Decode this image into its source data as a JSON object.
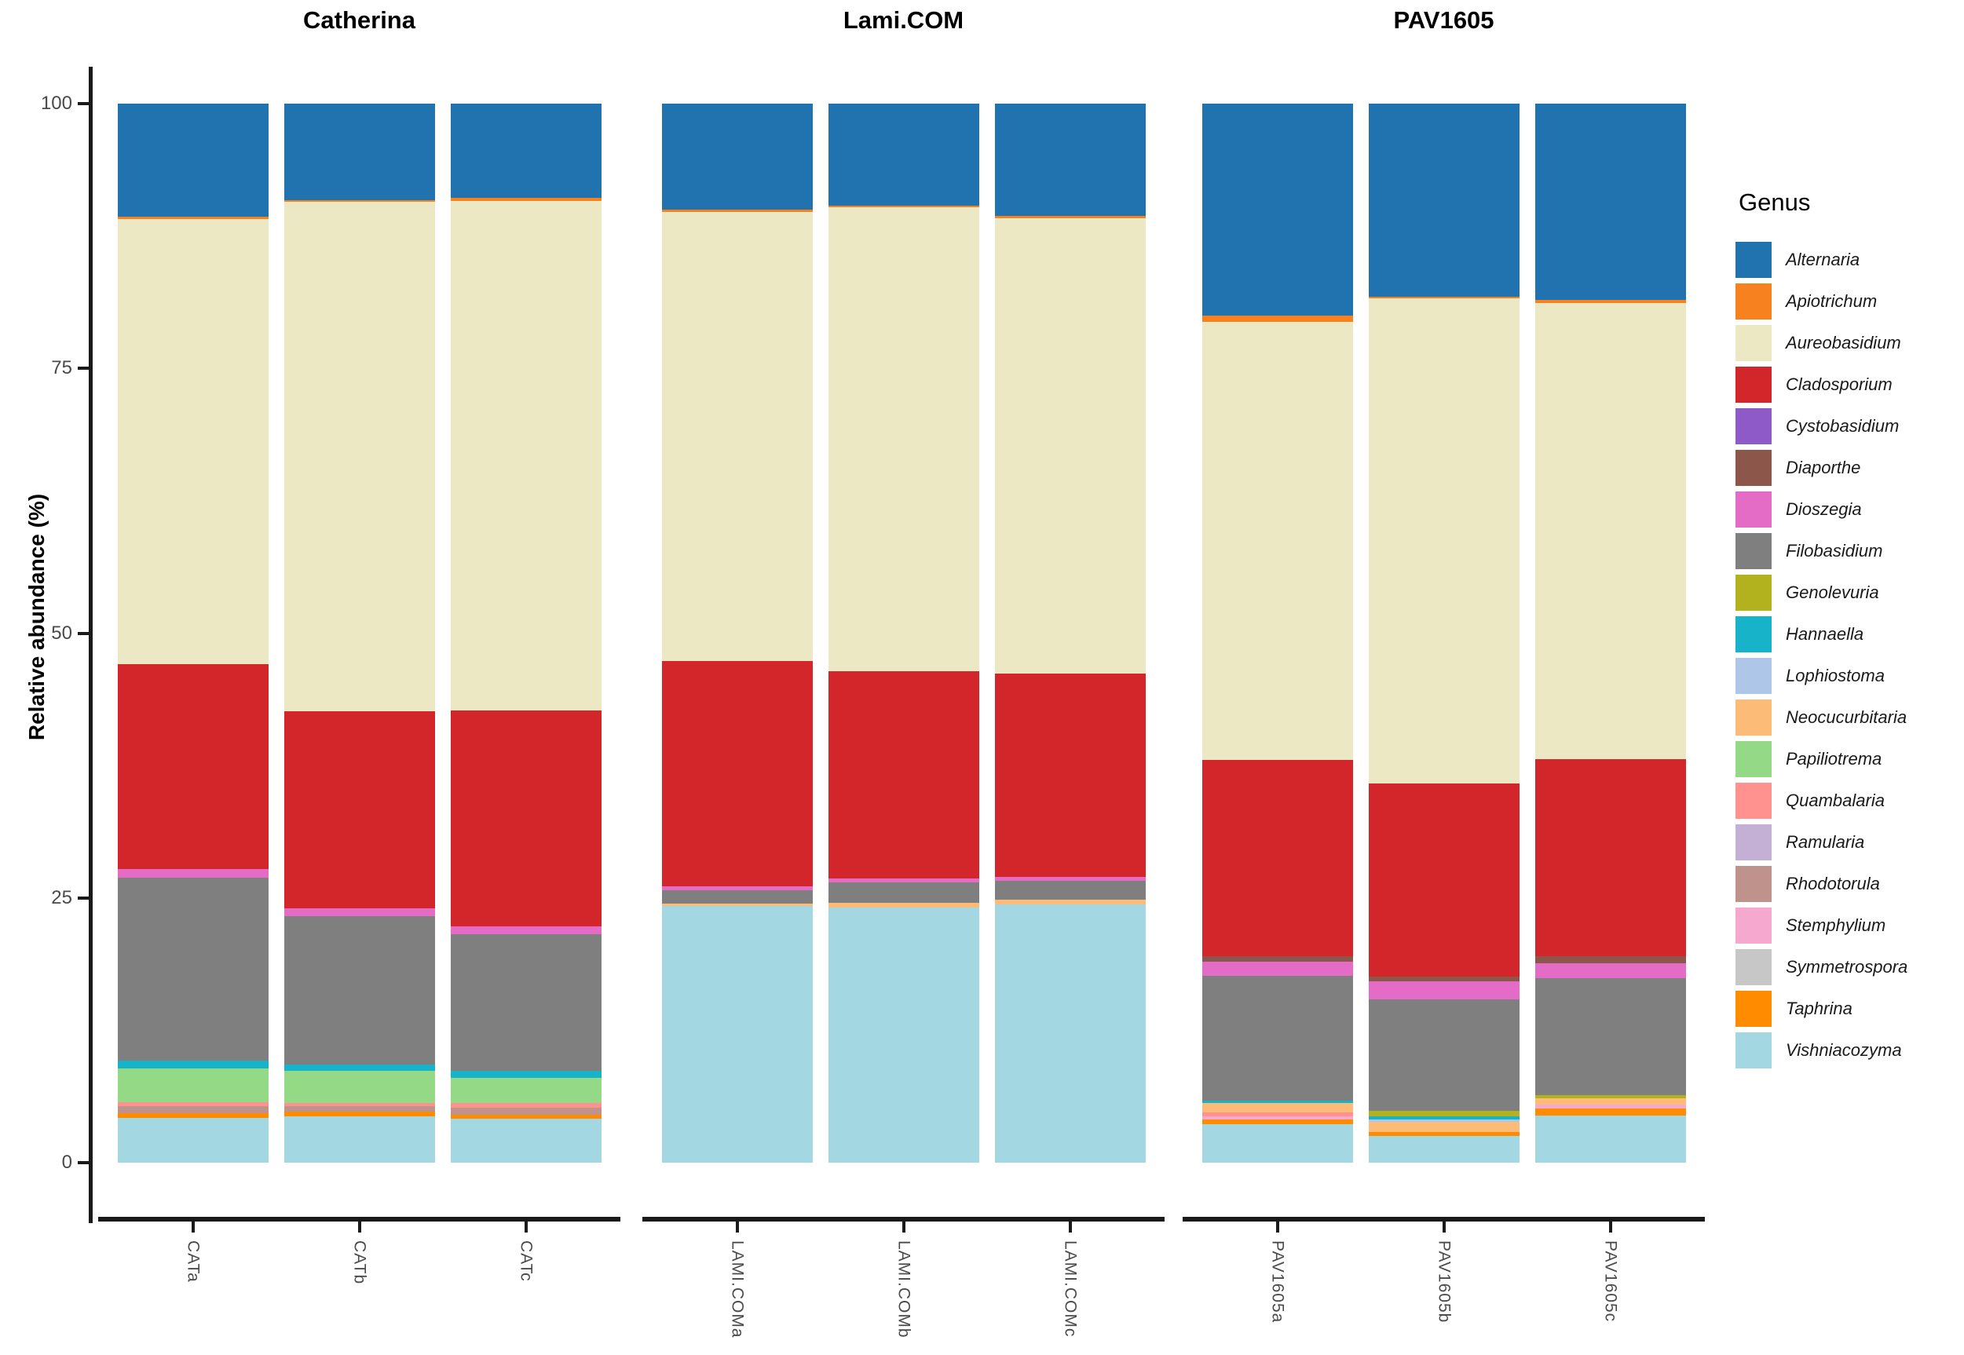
{
  "chart_data": {
    "type": "bar",
    "subtype": "stacked-percent-faceted",
    "title": "",
    "ylabel": "Relative abundance (%)",
    "xlabel": "",
    "ylim": [
      0,
      100
    ],
    "yticks": [
      0,
      25,
      50,
      75,
      100
    ],
    "grid": "off",
    "legend_position": "right",
    "legend_title": "Genus",
    "genera": [
      {
        "name": "Alternaria",
        "color": "#2173b0"
      },
      {
        "name": "Apiotrichum",
        "color": "#f8811f"
      },
      {
        "name": "Aureobasidium",
        "color": "#ece8c3"
      },
      {
        "name": "Cladosporium",
        "color": "#d3262a"
      },
      {
        "name": "Cystobasidium",
        "color": "#8d5ac8"
      },
      {
        "name": "Diaporthe",
        "color": "#8c564b"
      },
      {
        "name": "Dioszegia",
        "color": "#e46cc7"
      },
      {
        "name": "Filobasidium",
        "color": "#7f7f7f"
      },
      {
        "name": "Genolevuria",
        "color": "#b2b21e"
      },
      {
        "name": "Hannaella",
        "color": "#17b3c9"
      },
      {
        "name": "Lophiostoma",
        "color": "#aec7e8"
      },
      {
        "name": "Neocucurbitaria",
        "color": "#fdbb78"
      },
      {
        "name": "Papiliotrema",
        "color": "#94da86"
      },
      {
        "name": "Quambalaria",
        "color": "#ff918e"
      },
      {
        "name": "Ramularia",
        "color": "#c5b0d5"
      },
      {
        "name": "Rhodotorula",
        "color": "#c0928c"
      },
      {
        "name": "Stemphylium",
        "color": "#f7a8ce"
      },
      {
        "name": "Symmetrospora",
        "color": "#c7c7c7"
      },
      {
        "name": "Taphrina",
        "color": "#ff8c00"
      },
      {
        "name": "Vishniacozyma",
        "color": "#a3d8e3"
      }
    ],
    "facets": [
      {
        "label": "Catherina",
        "bars": [
          {
            "label": "CATa",
            "segments": [
              {
                "genus": "Alternaria",
                "value": 10.7
              },
              {
                "genus": "Apiotrichum",
                "value": 0.2
              },
              {
                "genus": "Aureobasidium",
                "value": 42.0
              },
              {
                "genus": "Cladosporium",
                "value": 19.4
              },
              {
                "genus": "Dioszegia",
                "value": 0.8
              },
              {
                "genus": "Filobasidium",
                "value": 17.3
              },
              {
                "genus": "Hannaella",
                "value": 0.7
              },
              {
                "genus": "Papiliotrema",
                "value": 3.2
              },
              {
                "genus": "Quambalaria",
                "value": 0.35
              },
              {
                "genus": "Rhodotorula",
                "value": 0.65
              },
              {
                "genus": "Taphrina",
                "value": 0.45
              },
              {
                "genus": "Vishniacozyma",
                "value": 4.25
              }
            ]
          },
          {
            "label": "CATb",
            "segments": [
              {
                "genus": "Alternaria",
                "value": 9.1
              },
              {
                "genus": "Apiotrichum",
                "value": 0.15
              },
              {
                "genus": "Aureobasidium",
                "value": 48.1
              },
              {
                "genus": "Cladosporium",
                "value": 18.6
              },
              {
                "genus": "Dioszegia",
                "value": 0.8
              },
              {
                "genus": "Filobasidium",
                "value": 14.0
              },
              {
                "genus": "Hannaella",
                "value": 0.6
              },
              {
                "genus": "Papiliotrema",
                "value": 3.0
              },
              {
                "genus": "Quambalaria",
                "value": 0.3
              },
              {
                "genus": "Rhodotorula",
                "value": 0.5
              },
              {
                "genus": "Taphrina",
                "value": 0.45
              },
              {
                "genus": "Vishniacozyma",
                "value": 4.4
              }
            ]
          },
          {
            "label": "CATc",
            "segments": [
              {
                "genus": "Alternaria",
                "value": 8.9
              },
              {
                "genus": "Apiotrichum",
                "value": 0.3
              },
              {
                "genus": "Aureobasidium",
                "value": 48.1
              },
              {
                "genus": "Cladosporium",
                "value": 20.4
              },
              {
                "genus": "Dioszegia",
                "value": 0.7
              },
              {
                "genus": "Filobasidium",
                "value": 12.9
              },
              {
                "genus": "Hannaella",
                "value": 0.7
              },
              {
                "genus": "Papiliotrema",
                "value": 2.4
              },
              {
                "genus": "Quambalaria",
                "value": 0.4
              },
              {
                "genus": "Rhodotorula",
                "value": 0.7
              },
              {
                "genus": "Taphrina",
                "value": 0.35
              },
              {
                "genus": "Vishniacozyma",
                "value": 4.15
              }
            ]
          }
        ]
      },
      {
        "label": "Lami.COM",
        "bars": [
          {
            "label": "LAMI.COMa",
            "segments": [
              {
                "genus": "Alternaria",
                "value": 10.0
              },
              {
                "genus": "Apiotrichum",
                "value": 0.2
              },
              {
                "genus": "Aureobasidium",
                "value": 42.4
              },
              {
                "genus": "Cladosporium",
                "value": 21.3
              },
              {
                "genus": "Dioszegia",
                "value": 0.35
              },
              {
                "genus": "Filobasidium",
                "value": 1.3
              },
              {
                "genus": "Neocucurbitaria",
                "value": 0.25
              },
              {
                "genus": "Vishniacozyma",
                "value": 24.2
              }
            ]
          },
          {
            "label": "LAMI.COMb",
            "segments": [
              {
                "genus": "Alternaria",
                "value": 9.6
              },
              {
                "genus": "Apiotrichum",
                "value": 0.2
              },
              {
                "genus": "Aureobasidium",
                "value": 43.8
              },
              {
                "genus": "Cladosporium",
                "value": 19.6
              },
              {
                "genus": "Dioszegia",
                "value": 0.35
              },
              {
                "genus": "Filobasidium",
                "value": 1.95
              },
              {
                "genus": "Neocucurbitaria",
                "value": 0.4
              },
              {
                "genus": "Vishniacozyma",
                "value": 24.1
              }
            ]
          },
          {
            "label": "LAMI.COMc",
            "segments": [
              {
                "genus": "Alternaria",
                "value": 10.6
              },
              {
                "genus": "Apiotrichum",
                "value": 0.2
              },
              {
                "genus": "Aureobasidium",
                "value": 43.0
              },
              {
                "genus": "Cladosporium",
                "value": 19.2
              },
              {
                "genus": "Dioszegia",
                "value": 0.4
              },
              {
                "genus": "Filobasidium",
                "value": 1.8
              },
              {
                "genus": "Neocucurbitaria",
                "value": 0.45
              },
              {
                "genus": "Vishniacozyma",
                "value": 24.35
              }
            ]
          }
        ]
      },
      {
        "label": "PAV1605",
        "bars": [
          {
            "label": "PAV1605a",
            "segments": [
              {
                "genus": "Alternaria",
                "value": 20.0
              },
              {
                "genus": "Apiotrichum",
                "value": 0.6
              },
              {
                "genus": "Aureobasidium",
                "value": 41.4
              },
              {
                "genus": "Cladosporium",
                "value": 18.5
              },
              {
                "genus": "Diaporthe",
                "value": 0.5
              },
              {
                "genus": "Dioszegia",
                "value": 1.35
              },
              {
                "genus": "Filobasidium",
                "value": 11.8
              },
              {
                "genus": "Hannaella",
                "value": 0.2
              },
              {
                "genus": "Neocucurbitaria",
                "value": 0.9
              },
              {
                "genus": "Quambalaria",
                "value": 0.35
              },
              {
                "genus": "Stemphylium",
                "value": 0.35
              },
              {
                "genus": "Taphrina",
                "value": 0.45
              },
              {
                "genus": "Vishniacozyma",
                "value": 3.6
              }
            ]
          },
          {
            "label": "PAV1605b",
            "segments": [
              {
                "genus": "Alternaria",
                "value": 18.2
              },
              {
                "genus": "Apiotrichum",
                "value": 0.2
              },
              {
                "genus": "Aureobasidium",
                "value": 45.8
              },
              {
                "genus": "Cladosporium",
                "value": 18.2
              },
              {
                "genus": "Diaporthe",
                "value": 0.5
              },
              {
                "genus": "Dioszegia",
                "value": 1.7
              },
              {
                "genus": "Filobasidium",
                "value": 10.5
              },
              {
                "genus": "Genolevuria",
                "value": 0.5
              },
              {
                "genus": "Hannaella",
                "value": 0.35
              },
              {
                "genus": "Lophiostoma",
                "value": 0.2
              },
              {
                "genus": "Neocucurbitaria",
                "value": 1.0
              },
              {
                "genus": "Taphrina",
                "value": 0.35
              },
              {
                "genus": "Vishniacozyma",
                "value": 2.5
              }
            ]
          },
          {
            "label": "PAV1605c",
            "segments": [
              {
                "genus": "Alternaria",
                "value": 18.5
              },
              {
                "genus": "Apiotrichum",
                "value": 0.3
              },
              {
                "genus": "Aureobasidium",
                "value": 43.1
              },
              {
                "genus": "Cladosporium",
                "value": 18.6
              },
              {
                "genus": "Diaporthe",
                "value": 0.7
              },
              {
                "genus": "Dioszegia",
                "value": 1.4
              },
              {
                "genus": "Filobasidium",
                "value": 11.0
              },
              {
                "genus": "Genolevuria",
                "value": 0.35
              },
              {
                "genus": "Neocucurbitaria",
                "value": 0.6
              },
              {
                "genus": "Stemphylium",
                "value": 0.35
              },
              {
                "genus": "Taphrina",
                "value": 0.65
              },
              {
                "genus": "Vishniacozyma",
                "value": 4.45
              }
            ]
          }
        ]
      }
    ]
  }
}
